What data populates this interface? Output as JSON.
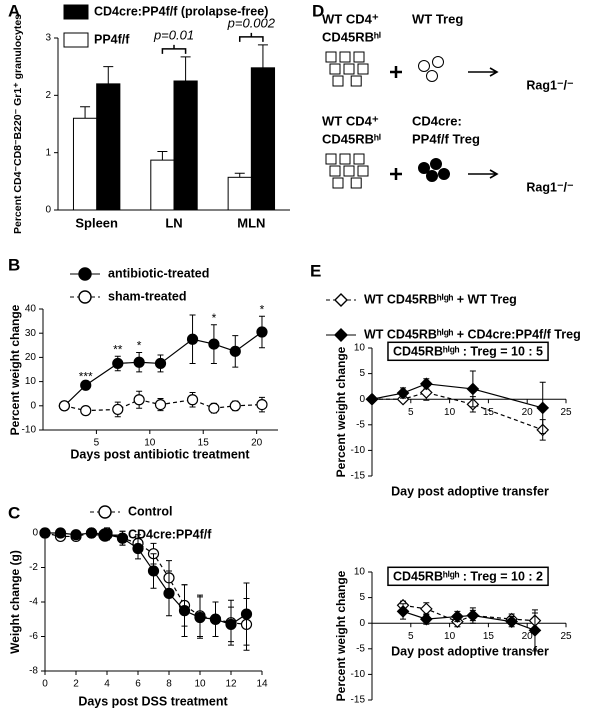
{
  "chart_data": [
    {
      "panel": "A",
      "type": "bar",
      "ylabel": "Percent CD4⁻CD8⁻B220⁻ Gr1⁺ granulocytes",
      "categories": [
        "Spleen",
        "LN",
        "MLN"
      ],
      "series": [
        {
          "name": "CD4cre:PP4f/f (prolapse-free)",
          "color": "#000000",
          "values": [
            2.2,
            2.25,
            2.48
          ],
          "errors": [
            0.3,
            0.42,
            0.4
          ]
        },
        {
          "name": "PP4f/f",
          "color": "#ffffff",
          "values": [
            1.6,
            0.87,
            0.57
          ],
          "errors": [
            0.2,
            0.15,
            0.07
          ]
        }
      ],
      "ylim": [
        0,
        3
      ],
      "yticks": [
        0,
        1,
        2,
        3
      ],
      "annotations": [
        "p=0.01",
        "p=0.002"
      ]
    },
    {
      "panel": "B",
      "type": "line",
      "xlabel": "Days post antibiotic treatment",
      "ylabel": "Percent weight change",
      "x": [
        2,
        4,
        7,
        9,
        11,
        14,
        16,
        18,
        20.5
      ],
      "series": [
        {
          "name": "antibiotic-treated",
          "color": "#000000",
          "fill": "#000000",
          "marker": "circle",
          "dashed": false,
          "values": [
            0,
            8.5,
            17.5,
            18,
            17.5,
            27.5,
            25.5,
            22.5,
            30.5
          ],
          "errors": [
            0,
            0.8,
            3,
            4,
            3.5,
            10,
            8,
            6.5,
            6.5
          ]
        },
        {
          "name": "sham-treated",
          "color": "#000000",
          "fill": "#ffffff",
          "marker": "circle",
          "dashed": true,
          "values": [
            0,
            -2,
            -1.5,
            2.5,
            0.5,
            2.5,
            -1,
            0,
            0.5
          ],
          "errors": [
            0,
            1,
            3,
            3.5,
            2.5,
            3,
            2,
            2,
            3
          ]
        }
      ],
      "xlim": [
        0,
        22
      ],
      "xticks": [
        5,
        10,
        15,
        20
      ],
      "ylim": [
        -10,
        40
      ],
      "yticks": [
        -10,
        0,
        10,
        20,
        30,
        40
      ],
      "annotations": [
        {
          "text": "***",
          "x": 4
        },
        {
          "text": "**",
          "x": 7
        },
        {
          "text": "*",
          "x": 9
        },
        {
          "text": "*",
          "x": 16
        },
        {
          "text": "*",
          "x": 20.5
        }
      ]
    },
    {
      "panel": "C",
      "type": "line",
      "xlabel": "Days post DSS treatment",
      "ylabel": "Weight change (g)",
      "x": [
        0,
        1,
        2,
        3,
        4,
        5,
        6,
        7,
        8,
        9,
        10,
        11,
        12,
        13
      ],
      "series": [
        {
          "name": "Control",
          "color": "#000000",
          "fill": "#ffffff",
          "marker": "circle",
          "dashed": true,
          "values": [
            0,
            -0.2,
            -0.2,
            0,
            0,
            -0.3,
            -0.6,
            -1.2,
            -2.6,
            -4.2,
            -4.8,
            -5.0,
            -5.2,
            -5.3
          ],
          "errors": [
            0,
            0.2,
            0.2,
            0.2,
            0.3,
            0.4,
            0.5,
            0.6,
            1,
            1.2,
            1.2,
            1,
            1.3,
            1.5
          ]
        },
        {
          "name": "CD4cre:PP4f/f",
          "color": "#000000",
          "fill": "#000000",
          "marker": "circle",
          "dashed": false,
          "values": [
            0,
            0,
            -0.1,
            0,
            -0.1,
            -0.3,
            -0.9,
            -2.2,
            -3.5,
            -4.5,
            -4.9,
            -5.0,
            -5.3,
            -4.7
          ],
          "errors": [
            0,
            0.2,
            0.2,
            0.2,
            0.3,
            0.4,
            0.6,
            1,
            1.3,
            1.5,
            1.2,
            1,
            1,
            1.8
          ]
        }
      ],
      "xlim": [
        0,
        14
      ],
      "xticks": [
        0,
        2,
        4,
        6,
        8,
        10,
        12,
        14
      ],
      "ylim": [
        -8,
        0
      ],
      "yticks": [
        -8,
        -6,
        -4,
        -2,
        0
      ]
    },
    {
      "panel": "E",
      "type": "line",
      "title": "CD45RBʰⁱᵍʰ : Treg = 10 : 5",
      "xlabel": "Day post adoptive transfer",
      "ylabel": "Percent weight change",
      "x": [
        0,
        4,
        7,
        13,
        22
      ],
      "series": [
        {
          "name": "WT CD45RBʰⁱᵍʰ + WT Treg",
          "color": "#000000",
          "fill": "#ffffff",
          "marker": "diamond",
          "dashed": true,
          "values": [
            0,
            0,
            1.3,
            -1,
            -6
          ],
          "errors": [
            0,
            0.5,
            1.5,
            1.5,
            2
          ]
        },
        {
          "name": "WT CD45RBʰⁱᵍʰ + CD4cre:PP4f/f Treg",
          "color": "#000000",
          "fill": "#000000",
          "marker": "diamond",
          "dashed": false,
          "values": [
            0,
            1.2,
            3,
            2,
            -1.7
          ],
          "errors": [
            0,
            1,
            1,
            3.5,
            5
          ]
        }
      ],
      "xlim": [
        0,
        25
      ],
      "xticks": [
        5,
        10,
        15,
        20,
        25
      ],
      "ylim": [
        -15,
        10
      ],
      "yticks": [
        -15,
        -10,
        -5,
        0,
        5,
        10
      ]
    },
    {
      "type": "line",
      "title": "CD45RBʰⁱᵍʰ : Treg = 10 : 2",
      "xlabel": "Day post adoptive transfer",
      "ylabel": "Percent weight change",
      "x": [
        4,
        7,
        11,
        13,
        18,
        21
      ],
      "series": [
        {
          "color": "#000000",
          "fill": "#ffffff",
          "marker": "diamond",
          "dashed": true,
          "values": [
            3.5,
            2.8,
            0.3,
            1.5,
            0.8,
            0.5
          ],
          "errors": [
            0.8,
            1.2,
            1,
            1,
            1,
            1.5
          ]
        },
        {
          "color": "#000000",
          "fill": "#000000",
          "marker": "diamond",
          "dashed": false,
          "values": [
            2.3,
            0.8,
            1.3,
            1.5,
            0.3,
            -1.4
          ],
          "errors": [
            1.5,
            1,
            1,
            1.5,
            1,
            4
          ]
        }
      ],
      "xlim": [
        0,
        25
      ],
      "xticks": [
        5,
        10,
        15,
        20,
        25
      ],
      "ylim": [
        -15,
        10
      ],
      "yticks": [
        -15,
        -10,
        -5,
        0,
        5,
        10
      ]
    }
  ],
  "diagram": {
    "panel": "D",
    "rows": [
      {
        "donor": [
          "WT CD4⁺",
          "CD45RBʰⁱ"
        ],
        "treg": [
          "WT Treg"
        ],
        "host": "Rag1⁻/⁻"
      },
      {
        "donor": [
          "WT CD4⁺",
          "CD45RBʰⁱ"
        ],
        "treg": [
          "CD4cre:",
          "PP4f/f Treg"
        ],
        "host": "Rag1⁻/⁻"
      }
    ]
  }
}
